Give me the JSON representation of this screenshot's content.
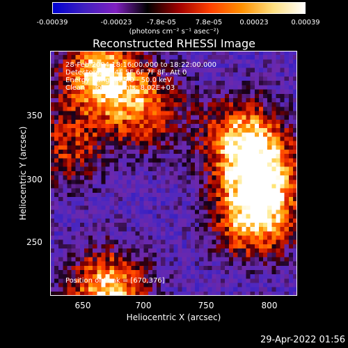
{
  "colorbar": {
    "ticks": [
      "-0.00039",
      "-0.00023",
      "-7.8e-05",
      "7.8e-05",
      "0.00023",
      "0.00039"
    ],
    "unit_label": "(photons cm⁻² s⁻¹ asec⁻²)",
    "colors": [
      "#0000d0",
      "#4020c0",
      "#8020c0",
      "#000000",
      "#a00000",
      "#ff4000",
      "#ff9000",
      "#ffe080",
      "#ffffff"
    ]
  },
  "chart_data": {
    "type": "heatmap",
    "title": "Reconstructed RHESSI Image",
    "xlabel": "Heliocentric X (arcsec)",
    "ylabel": "Heliocentric Y (arcsec)",
    "xlim": [
      630,
      823
    ],
    "ylim": [
      206,
      396
    ],
    "xticks": [
      "650",
      "700",
      "750",
      "800"
    ],
    "yticks": [
      "250",
      "300",
      "350"
    ],
    "value_range": [
      -0.00039,
      0.00039
    ],
    "annotations": [
      "28-Feb-2004 18:16:00.000 to 18:22:00.000",
      "Detectors: 3F 4F 5F 6F 7F 8F, Att 0",
      "Energy Range: 25.0 - 50.0 keV",
      "Clean    Total counts: 8.02E+03"
    ],
    "peak_label": "Position of Peak = [670,376]",
    "bright_regions": [
      {
        "x": 670,
        "y": 376,
        "level": 1.0
      },
      {
        "x": 675,
        "y": 210,
        "level": 0.95
      },
      {
        "x": 790,
        "y": 265,
        "level": 0.9
      },
      {
        "x": 795,
        "y": 300,
        "level": 0.85
      },
      {
        "x": 780,
        "y": 330,
        "level": 0.8
      },
      {
        "x": 705,
        "y": 350,
        "level": 0.6
      },
      {
        "x": 645,
        "y": 320,
        "level": 0.5
      }
    ]
  },
  "timestamp": "29-Apr-2022 01:56"
}
